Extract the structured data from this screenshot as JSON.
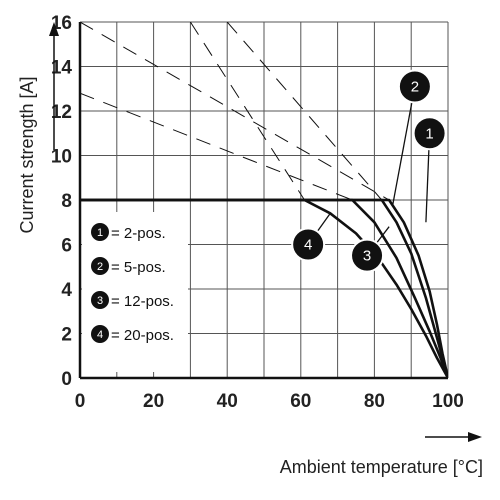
{
  "chart_data": {
    "type": "line",
    "xlabel": "Ambient temperature [°C]",
    "ylabel": "Current strength [A]",
    "xlim": [
      0,
      100
    ],
    "ylim": [
      0,
      16
    ],
    "x_ticks": [
      0,
      20,
      40,
      60,
      80,
      100
    ],
    "y_ticks": [
      0,
      2,
      4,
      6,
      8,
      10,
      12,
      14,
      16
    ],
    "grid": true,
    "legend_position": "left-center",
    "legend": [
      {
        "marker": "1",
        "text": "= 2-pos."
      },
      {
        "marker": "2",
        "text": "= 5-pos."
      },
      {
        "marker": "3",
        "text": "= 12-pos."
      },
      {
        "marker": "4",
        "text": "= 20-pos."
      }
    ],
    "series": [
      {
        "marker": "1",
        "style": "solid",
        "points": [
          [
            0,
            8
          ],
          [
            84,
            8
          ],
          [
            88,
            7
          ],
          [
            92,
            5.5
          ],
          [
            95,
            3.9
          ],
          [
            97,
            2.4
          ],
          [
            98.5,
            1.1
          ],
          [
            100,
            0
          ]
        ]
      },
      {
        "marker": "2",
        "style": "solid",
        "points": [
          [
            0,
            8
          ],
          [
            82,
            8
          ],
          [
            86,
            7
          ],
          [
            90,
            5.6
          ],
          [
            94,
            3.6
          ],
          [
            97,
            1.8
          ],
          [
            100,
            0
          ]
        ]
      },
      {
        "marker": "3",
        "style": "solid",
        "points": [
          [
            0,
            8
          ],
          [
            74,
            8
          ],
          [
            80,
            7
          ],
          [
            86,
            5.4
          ],
          [
            91,
            3.6
          ],
          [
            95,
            2.1
          ],
          [
            98,
            0.9
          ],
          [
            100,
            0
          ]
        ]
      },
      {
        "marker": "4",
        "style": "solid",
        "points": [
          [
            0,
            8
          ],
          [
            61,
            8
          ],
          [
            68,
            7.4
          ],
          [
            75,
            6.5
          ],
          [
            81,
            5.4
          ],
          [
            86,
            4.2
          ],
          [
            90,
            3.1
          ],
          [
            94,
            1.9
          ],
          [
            97,
            0.9
          ],
          [
            100,
            0
          ]
        ]
      },
      {
        "marker": "1",
        "style": "dashed",
        "points": [
          [
            0,
            16
          ],
          [
            84,
            8
          ]
        ]
      },
      {
        "marker": "2",
        "style": "dashed",
        "points": [
          [
            40,
            16
          ],
          [
            82,
            8
          ]
        ]
      },
      {
        "marker": "3",
        "style": "dashed",
        "points": [
          [
            0,
            12.8
          ],
          [
            74,
            8
          ]
        ]
      },
      {
        "marker": "4",
        "style": "dashed",
        "points": [
          [
            30,
            16
          ],
          [
            61,
            8
          ]
        ]
      }
    ],
    "callouts": [
      {
        "label": "1",
        "from": [
          95,
          11
        ],
        "to": [
          94,
          7.0
        ]
      },
      {
        "label": "2",
        "from": [
          91,
          13.1
        ],
        "to": [
          85,
          7.8
        ]
      },
      {
        "label": "3",
        "from": [
          78,
          5.5
        ],
        "to": [
          84,
          6.8
        ]
      },
      {
        "label": "4",
        "from": [
          62,
          6
        ],
        "to": [
          68,
          7.4
        ]
      }
    ],
    "color": "#111111"
  }
}
